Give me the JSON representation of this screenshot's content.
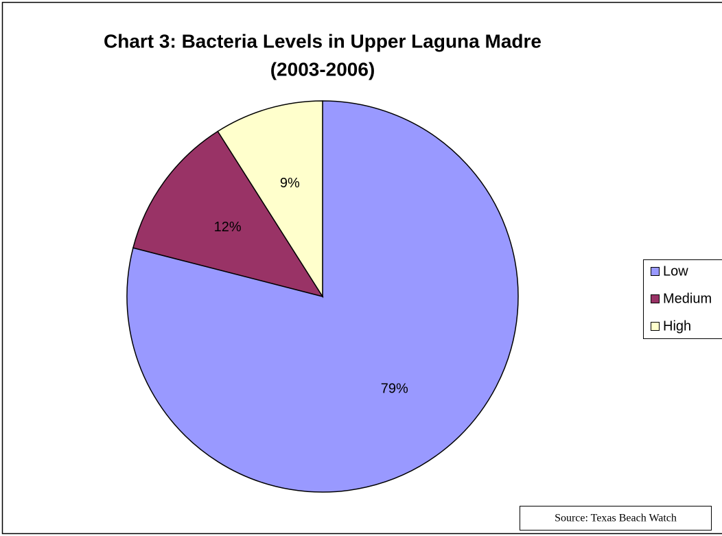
{
  "chart_data": {
    "type": "pie",
    "title": [
      "Chart 3:  Bacteria Levels in Upper Laguna Madre",
      "(2003-2006)"
    ],
    "categories": [
      "Low",
      "Medium",
      "High"
    ],
    "values": [
      79,
      12,
      9
    ],
    "value_labels": [
      "79%",
      "12%",
      "9%"
    ],
    "colors": [
      "#9999ff",
      "#993366",
      "#ffffcc"
    ],
    "legend": "right",
    "annotation": "Source: Texas Beach Watch"
  }
}
